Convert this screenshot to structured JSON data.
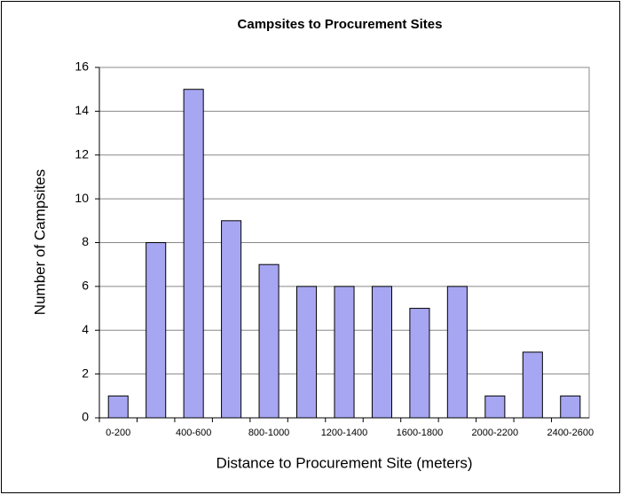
{
  "chart_data": {
    "type": "bar",
    "title": "Campsites to Procurement Sites",
    "x_label": "Distance to Procurement Site (meters)",
    "y_label": "Number of Campsites",
    "categories": [
      "0-200",
      null,
      "400-600",
      null,
      "800-1000",
      null,
      "1200-1400",
      null,
      "1600-1800",
      null,
      "2000-2200",
      null,
      "2400-2600"
    ],
    "values": [
      1,
      8,
      15,
      9,
      7,
      6,
      6,
      6,
      5,
      6,
      1,
      3,
      1
    ],
    "color": "#a6a6f2",
    "ylim": [
      0,
      16
    ],
    "yticks": [
      0,
      2,
      4,
      6,
      8,
      10,
      12,
      14,
      16
    ],
    "grid": true
  }
}
